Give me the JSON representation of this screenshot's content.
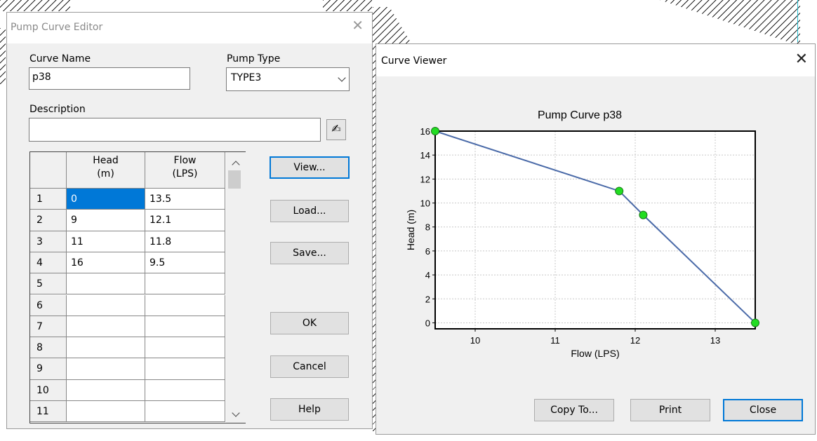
{
  "editor": {
    "title": "Pump Curve Editor",
    "curve_name_label": "Curve Name",
    "curve_name_value": "p38",
    "pump_type_label": "Pump Type",
    "pump_type_value": "TYPE3",
    "description_label": "Description",
    "description_value": "",
    "table": {
      "headers": [
        {
          "line1": "Head",
          "line2": "(m)"
        },
        {
          "line1": "Flow",
          "line2": "(LPS)"
        }
      ],
      "rows": [
        {
          "num": "1",
          "head": "0",
          "flow": "13.5"
        },
        {
          "num": "2",
          "head": "9",
          "flow": "12.1"
        },
        {
          "num": "3",
          "head": "11",
          "flow": "11.8"
        },
        {
          "num": "4",
          "head": "16",
          "flow": "9.5"
        },
        {
          "num": "5",
          "head": "",
          "flow": ""
        },
        {
          "num": "6",
          "head": "",
          "flow": ""
        },
        {
          "num": "7",
          "head": "",
          "flow": ""
        },
        {
          "num": "8",
          "head": "",
          "flow": ""
        },
        {
          "num": "9",
          "head": "",
          "flow": ""
        },
        {
          "num": "10",
          "head": "",
          "flow": ""
        },
        {
          "num": "11",
          "head": "",
          "flow": ""
        }
      ]
    },
    "buttons": {
      "view": "View...",
      "load": "Load...",
      "save": "Save...",
      "ok": "OK",
      "cancel": "Cancel",
      "help": "Help"
    }
  },
  "viewer": {
    "title": "Curve Viewer",
    "buttons": {
      "copy": "Copy To...",
      "print": "Print",
      "close": "Close"
    }
  },
  "colors": {
    "line": "#4a6aa8",
    "marker": "#22dd22",
    "selection": "#0078d7"
  },
  "chart_data": {
    "type": "line",
    "title": "Pump Curve p38",
    "xlabel": "Flow (LPS)",
    "ylabel": "Head (m)",
    "xlim": [
      9.5,
      13.5
    ],
    "ylim": [
      -0.5,
      16
    ],
    "xticks": [
      10,
      11,
      12,
      13
    ],
    "yticks": [
      0,
      2,
      4,
      6,
      8,
      10,
      12,
      14,
      16
    ],
    "grid": true,
    "series": [
      {
        "x": [
          9.5,
          11.8,
          12.1,
          13.5
        ],
        "y": [
          16,
          11,
          9,
          0
        ]
      }
    ]
  }
}
